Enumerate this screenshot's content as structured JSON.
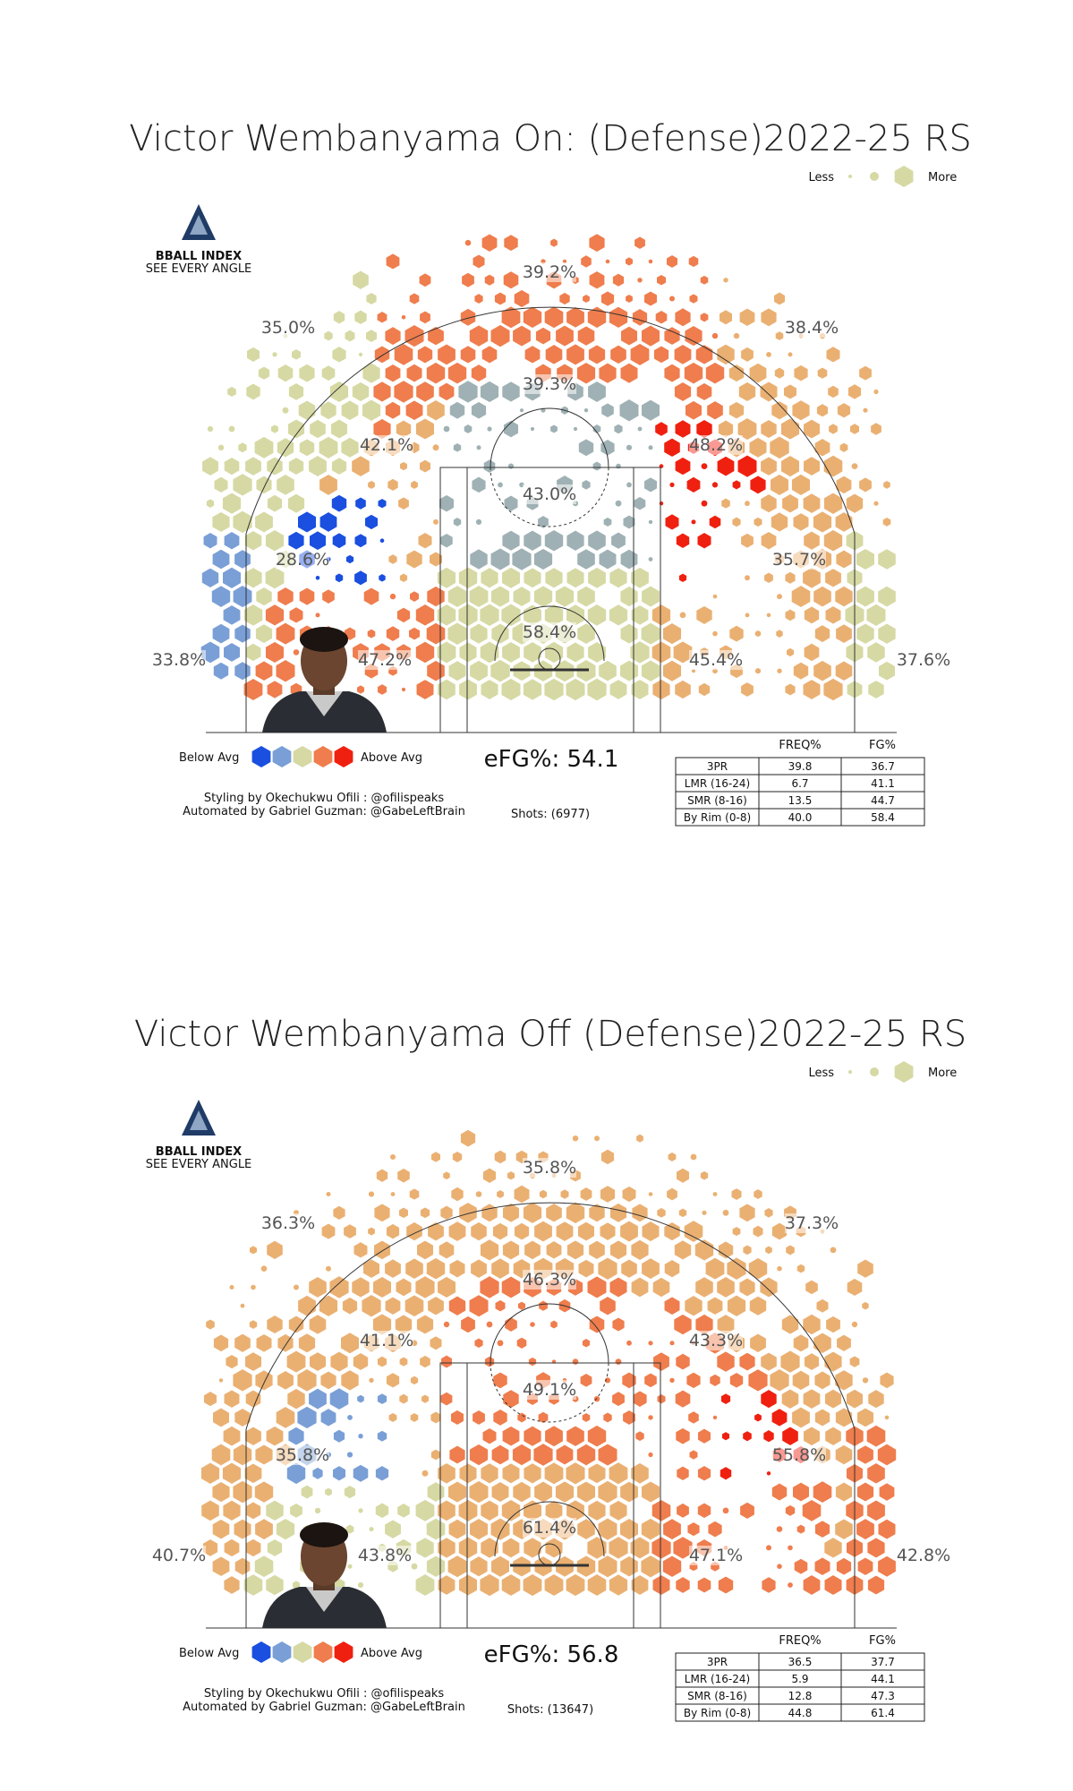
{
  "colors": {
    "blue": "#1a4fe0",
    "lightblue": "#7a9fd6",
    "neutral": "#d6d9a3",
    "orange": "#ef7d4d",
    "red": "#f02010",
    "lightorange": "#eab072",
    "gray": "#9fb1b4"
  },
  "legend": {
    "less": "Less",
    "more": "More",
    "below_avg": "Below Avg",
    "above_avg": "Above Avg"
  },
  "logo": {
    "name": "BBALL INDEX",
    "tagline": "SEE EVERY ANGLE"
  },
  "credits": {
    "styling": "Styling by Okechukwu Ofili : @ofilispeaks",
    "automated": "Automated by Gabriel Guzman: @GabeLeftBrain"
  },
  "table_headers": [
    "FREQ%",
    "FG%"
  ],
  "chart_data": [
    {
      "type": "table",
      "title": "Victor Wembanyama On: (Defense)2022-25 RS",
      "efg": "eFG%: 54.1",
      "shots": "Shots: (6977)",
      "zones": {
        "top_three": "39.2%",
        "left_wing_three": "35.0%",
        "right_wing_three": "38.4%",
        "top_mid": "39.3%",
        "left_elbow": "42.1%",
        "right_elbow": "48.2%",
        "paint_upper": "43.0%",
        "left_baseline_mid": "28.6%",
        "right_baseline_mid": "35.7%",
        "rim": "58.4%",
        "left_corner_three": "33.8%",
        "right_corner_three": "37.6%",
        "left_short": "47.2%",
        "right_short": "45.4%"
      },
      "zone_colors": {
        "top_three": "orange",
        "left_wing_three": "neutral",
        "right_wing_three": "lightorange",
        "top_mid": "gray",
        "left_elbow": "lightorange",
        "right_elbow": "red",
        "paint_upper": "gray",
        "left_baseline_mid": "blue",
        "right_baseline_mid": "lightorange",
        "rim": "neutral",
        "left_corner_three": "lightblue",
        "right_corner_three": "neutral",
        "left_short": "orange",
        "right_short": "lightorange"
      },
      "rows": [
        {
          "label": "3PR",
          "freq": "39.8",
          "fg": "36.7"
        },
        {
          "label": "LMR (16-24)",
          "freq": "6.7",
          "fg": "41.1"
        },
        {
          "label": "SMR (8-16)",
          "freq": "13.5",
          "fg": "44.7"
        },
        {
          "label": "By Rim (0-8)",
          "freq": "40.0",
          "fg": "58.4"
        }
      ]
    },
    {
      "type": "table",
      "title": "Victor Wembanyama Off (Defense)2022-25 RS",
      "efg": "eFG%: 56.8",
      "shots": "Shots: (13647)",
      "zones": {
        "top_three": "35.8%",
        "left_wing_three": "36.3%",
        "right_wing_three": "37.3%",
        "top_mid": "46.3%",
        "left_elbow": "41.1%",
        "right_elbow": "43.3%",
        "paint_upper": "49.1%",
        "left_baseline_mid": "35.8%",
        "right_baseline_mid": "55.8%",
        "rim": "61.4%",
        "left_corner_three": "40.7%",
        "right_corner_three": "42.8%",
        "left_short": "43.8%",
        "right_short": "47.1%"
      },
      "zone_colors": {
        "top_three": "lightorange",
        "left_wing_three": "lightorange",
        "right_wing_three": "lightorange",
        "top_mid": "orange",
        "left_elbow": "lightorange",
        "right_elbow": "orange",
        "paint_upper": "orange",
        "left_baseline_mid": "lightblue",
        "right_baseline_mid": "red",
        "rim": "lightorange",
        "left_corner_three": "lightorange",
        "right_corner_three": "orange",
        "left_short": "neutral",
        "right_short": "orange"
      },
      "rows": [
        {
          "label": "3PR",
          "freq": "36.5",
          "fg": "37.7"
        },
        {
          "label": "LMR (16-24)",
          "freq": "5.9",
          "fg": "44.1"
        },
        {
          "label": "SMR (8-16)",
          "freq": "12.8",
          "fg": "47.3"
        },
        {
          "label": "By Rim (0-8)",
          "freq": "44.8",
          "fg": "61.4"
        }
      ]
    }
  ]
}
